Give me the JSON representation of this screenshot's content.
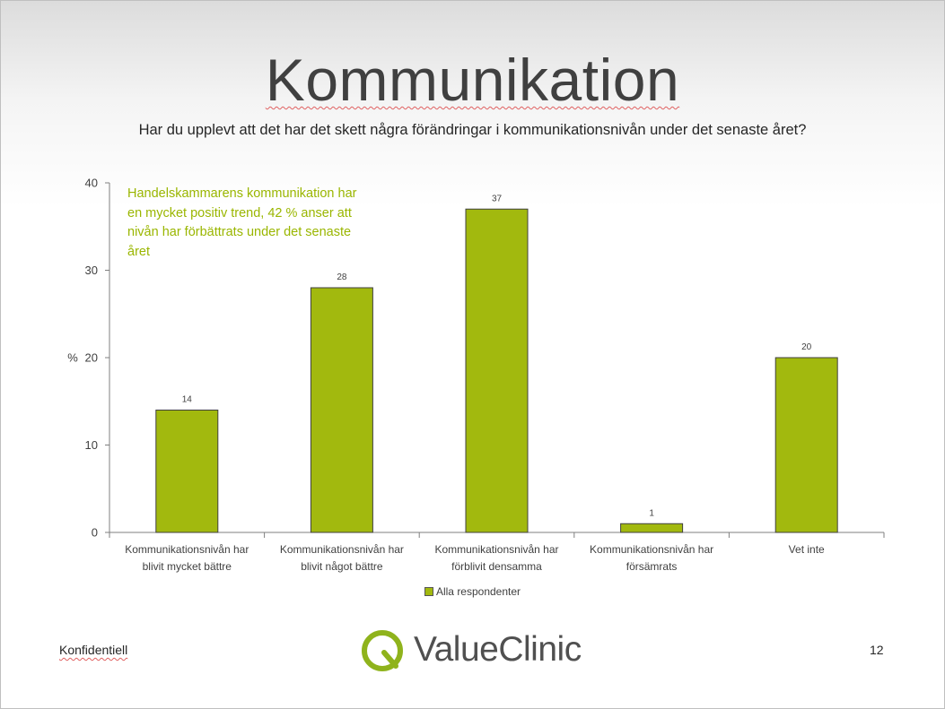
{
  "slide": {
    "title": "Kommunikation",
    "subtitle": "Har du upplevt att det har det skett några förändringar i kommunikationsnivån under det senaste året?",
    "annotation": "Handelskammarens kommunikation har en mycket  positiv trend, 42 % anser att nivån har förbättrats under det senaste året",
    "footer_left": "Konfidentiell",
    "page_number": "12",
    "logo_text": "ValueClinic"
  },
  "colors": {
    "bar": "#a2b90e",
    "annotation": "#9ab600",
    "logo": "#8fb31c"
  },
  "chart_data": {
    "type": "bar",
    "categories": [
      [
        "Kommunikationsnivån har",
        "blivit mycket bättre"
      ],
      [
        "Kommunikationsnivån har",
        "blivit något bättre"
      ],
      [
        "Kommunikationsnivån har",
        "förblivit densamma"
      ],
      [
        "Kommunikationsnivån har",
        "försämrats"
      ],
      [
        "Vet inte"
      ]
    ],
    "series": [
      {
        "name": "Alla respondenter",
        "values": [
          14,
          28,
          37,
          1,
          20
        ]
      }
    ],
    "ylabel": "%",
    "ylim": [
      0,
      40
    ],
    "yticks": [
      0,
      10,
      20,
      30,
      40
    ],
    "data_labels": true,
    "grid": false,
    "legend_position": "bottom"
  }
}
